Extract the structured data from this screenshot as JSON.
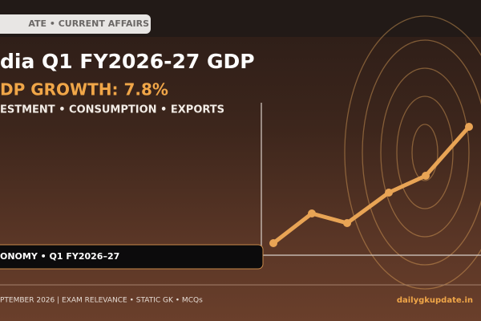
{
  "header": {
    "tag": "ATE • CURRENT AFFAIRS"
  },
  "title": "dia Q1 FY2026-27 GDP",
  "subtitle": "DP GROWTH: 7.8%",
  "drivers": "ESTMENT • CONSUMPTION • EXPORTS",
  "badge": "ONOMY • Q1 FY2026–27",
  "footer": {
    "left": "PTEMBER 2026  |  EXAM RELEVANCE • STATIC GK • MCQs",
    "right": "dailygkupdate.in"
  }
}
